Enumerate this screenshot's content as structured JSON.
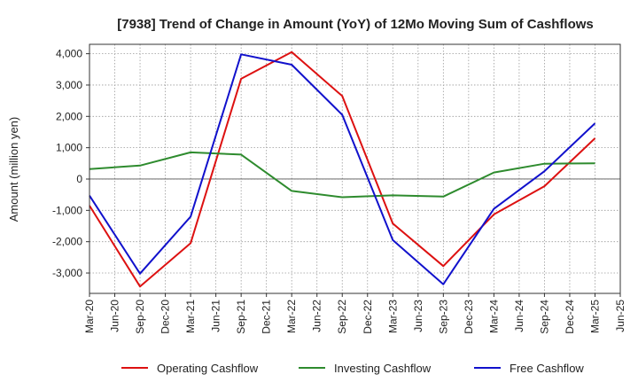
{
  "chart_data": {
    "type": "line",
    "title": "[7938]  Trend of Change in Amount (YoY) of 12Mo Moving Sum of Cashflows",
    "xlabel": "",
    "ylabel": "Amount (million yen)",
    "ylim": [
      -3650,
      4300
    ],
    "yticks": [
      4000,
      3000,
      2000,
      1000,
      0,
      -1000,
      -2000,
      -3000
    ],
    "ytick_labels": [
      "4,000",
      "3,000",
      "2,000",
      "1,000",
      "0",
      "-1,000",
      "-2,000",
      "-3,000"
    ],
    "categories": [
      "Mar-20",
      "Jun-20",
      "Sep-20",
      "Dec-20",
      "Mar-21",
      "Jun-21",
      "Sep-21",
      "Dec-21",
      "Mar-22",
      "Jun-22",
      "Sep-22",
      "Dec-22",
      "Mar-23",
      "Jun-23",
      "Sep-23",
      "Dec-23",
      "Mar-24",
      "Jun-24",
      "Sep-24",
      "Dec-24",
      "Mar-25",
      "Jun-25"
    ],
    "grid": true,
    "legend_position": "bottom",
    "series": [
      {
        "name": "Operating Cashflow",
        "color": "#dd1111",
        "values": [
          -850,
          null,
          -3430,
          null,
          -2050,
          null,
          3200,
          null,
          4050,
          null,
          2650,
          null,
          -1420,
          null,
          -2780,
          null,
          -1130,
          null,
          -230,
          null,
          1300,
          null
        ]
      },
      {
        "name": "Investing Cashflow",
        "color": "#2e8b2e",
        "values": [
          320,
          null,
          430,
          null,
          850,
          null,
          780,
          null,
          -380,
          null,
          -580,
          null,
          -520,
          null,
          -560,
          null,
          210,
          null,
          490,
          null,
          500,
          null
        ]
      },
      {
        "name": "Free Cashflow",
        "color": "#1111cc",
        "values": [
          -530,
          null,
          -3020,
          null,
          -1200,
          null,
          3980,
          null,
          3650,
          null,
          2050,
          null,
          -1950,
          null,
          -3360,
          null,
          -950,
          null,
          250,
          null,
          1780,
          null
        ]
      }
    ]
  }
}
